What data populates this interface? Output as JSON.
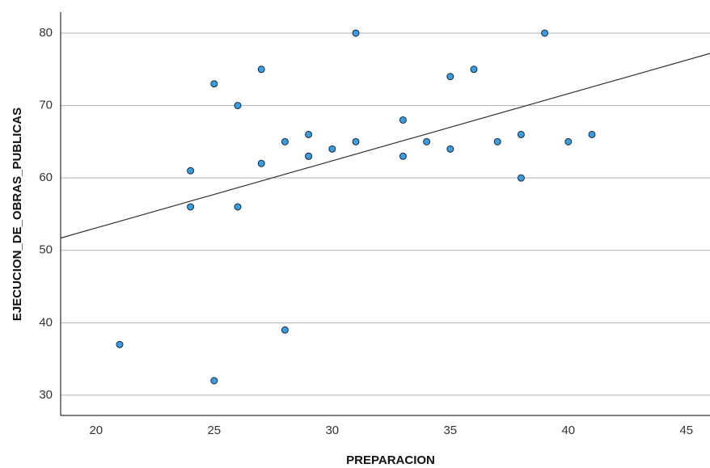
{
  "chart_data": {
    "type": "scatter",
    "x_label": "PREPARACION",
    "y_label": "EJECUCION_DE_OBRAS_PUBLICAS",
    "x": [
      21,
      24,
      24,
      25,
      25,
      26,
      26,
      27,
      27,
      28,
      28,
      29,
      29,
      29,
      30,
      31,
      31,
      33,
      33,
      34,
      35,
      35,
      36,
      37,
      38,
      38,
      39,
      40,
      41
    ],
    "series": [
      {
        "color": "#3a9de0",
        "values": [
          37,
          61,
          56,
          73,
          32,
          70,
          56,
          75,
          62,
          65,
          39,
          66,
          63,
          63,
          64,
          80,
          65,
          68,
          63,
          65,
          74,
          64,
          75,
          65,
          66,
          60,
          80,
          65,
          66
        ]
      }
    ],
    "fit_line": {
      "x": [
        18.5,
        46
      ],
      "y": [
        51.7,
        77.2
      ],
      "color": "#333333"
    },
    "xlim": [
      18.5,
      46
    ],
    "ylim": [
      27.2,
      82.9
    ],
    "xticks": [
      20,
      25,
      30,
      35,
      40,
      45
    ],
    "yticks": [
      30,
      40,
      50,
      60,
      70,
      80
    ],
    "grid": true
  }
}
